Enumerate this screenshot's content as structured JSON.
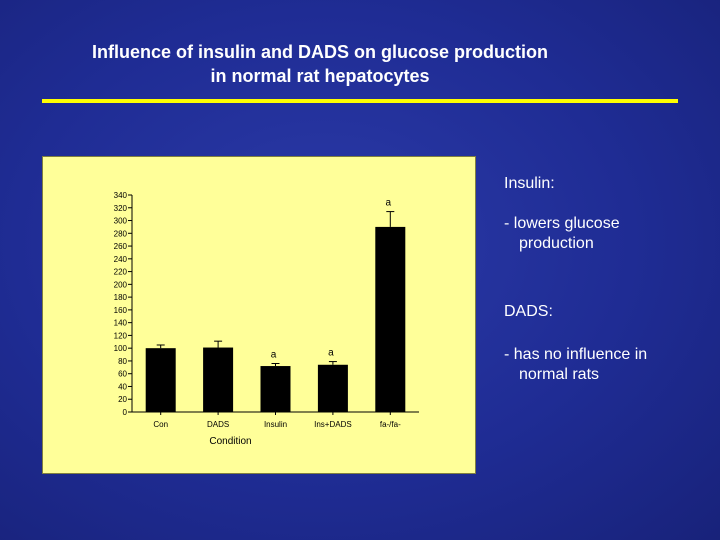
{
  "slide": {
    "title_line1": "Influence of insulin and DADS on glucose production",
    "title_line2": "in normal rat hepatocytes",
    "side_notes": {
      "heading1": "Insulin:",
      "item1_line1": "-  lowers glucose",
      "item1_line2": "production",
      "heading2": "DADS:",
      "item2_line1": "-  has no influence in",
      "item2_line2": "normal rats"
    }
  },
  "colors": {
    "background": "#1f2c94",
    "title": "#ffffff",
    "rule": "#ffff00",
    "chart_panel": "#ffff99",
    "bar": "#000000"
  },
  "chart_data": {
    "type": "bar",
    "title": "",
    "xlabel": "Condition",
    "ylabel": "",
    "categories": [
      "Con",
      "DADS",
      "Insulin",
      "Ins+DADS",
      "fa-/fa-"
    ],
    "values": [
      100,
      101,
      72,
      74,
      290
    ],
    "errors": [
      5,
      10,
      4,
      5,
      24
    ],
    "annotations": [
      "",
      "",
      "a",
      "a",
      "a"
    ],
    "ylim": [
      0,
      340
    ],
    "yticks": [
      0,
      20,
      40,
      60,
      80,
      100,
      120,
      140,
      160,
      180,
      200,
      220,
      240,
      260,
      280,
      300,
      320,
      340
    ],
    "grid": false,
    "legend": "none"
  }
}
